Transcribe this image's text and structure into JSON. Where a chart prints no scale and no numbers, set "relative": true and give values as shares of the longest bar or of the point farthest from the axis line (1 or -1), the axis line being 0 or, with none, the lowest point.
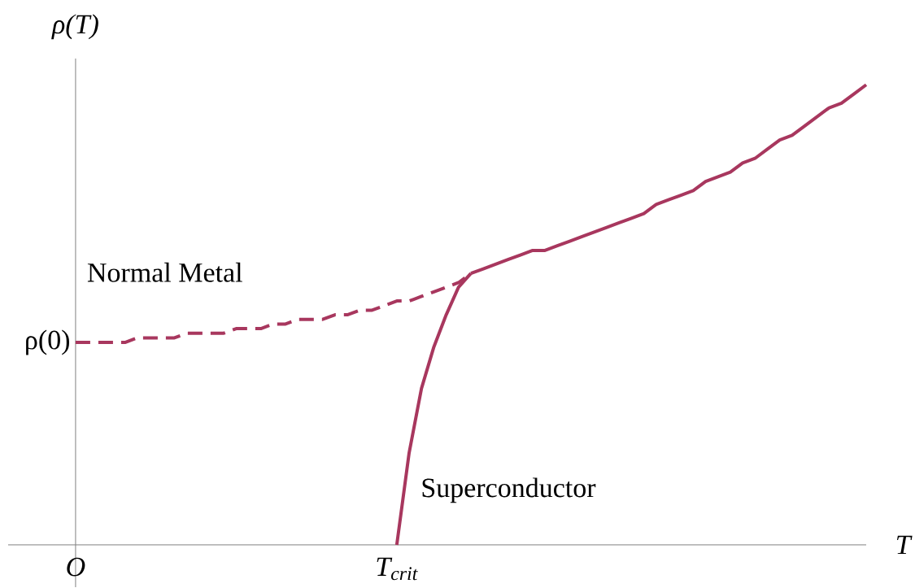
{
  "chart_data": {
    "type": "line",
    "relative": true,
    "xlabel": "T",
    "ylabel": "ρ(T)",
    "categories": [
      "O",
      null,
      null,
      null,
      null,
      null,
      null,
      null,
      null,
      null,
      null,
      null,
      null,
      null,
      null,
      null,
      null,
      null,
      null,
      null,
      null,
      null,
      null,
      null,
      null,
      null,
      "T$_{crit}$",
      null,
      null,
      null,
      null,
      null,
      null,
      null,
      null,
      null,
      null,
      null,
      null,
      null,
      null,
      null,
      null,
      null,
      null,
      null,
      null,
      null,
      null,
      null,
      null,
      null,
      null,
      null,
      null,
      null,
      null,
      null,
      null,
      null,
      null,
      null,
      null,
      null,
      null
    ],
    "series": [
      {
        "color": "#a8375e",
        "line_style": "dashed",
        "values": [
          0.44,
          0.44,
          0.44,
          0.44,
          0.44,
          0.45,
          0.45,
          0.45,
          0.45,
          0.46,
          0.46,
          0.46,
          0.46,
          0.47,
          0.47,
          0.47,
          0.48,
          0.48,
          0.49,
          0.49,
          0.49,
          0.5,
          0.5,
          0.51,
          0.51,
          0.52,
          0.53,
          0.53,
          0.54,
          0.55,
          0.56,
          0.57,
          0.59,
          null,
          null,
          null,
          null,
          null,
          null,
          null,
          null,
          null,
          null,
          null,
          null,
          null,
          null,
          null,
          null,
          null,
          null,
          null,
          null,
          null,
          null,
          null,
          null,
          null,
          null,
          null,
          null,
          null,
          null,
          null,
          null
        ]
      },
      {
        "color": "#a8375e",
        "line_style": "solid",
        "values": [
          null,
          null,
          null,
          null,
          null,
          null,
          null,
          null,
          null,
          null,
          null,
          null,
          null,
          null,
          null,
          null,
          null,
          null,
          null,
          null,
          null,
          null,
          null,
          null,
          null,
          null,
          null,
          null,
          null,
          null,
          null,
          null,
          0.59,
          0.6,
          0.61,
          0.62,
          0.63,
          0.64,
          0.64,
          0.65,
          0.66,
          0.67,
          0.68,
          0.69,
          0.7,
          0.71,
          0.72,
          0.74,
          0.75,
          0.76,
          0.77,
          0.79,
          0.8,
          0.81,
          0.83,
          0.84,
          0.86,
          0.88,
          0.89,
          0.91,
          0.93,
          0.95,
          0.96,
          0.98,
          1.0
        ]
      },
      {
        "color": "#a8375e",
        "line_style": "solid",
        "values": [
          null,
          null,
          null,
          null,
          null,
          null,
          null,
          null,
          null,
          null,
          null,
          null,
          null,
          null,
          null,
          null,
          null,
          null,
          null,
          null,
          null,
          null,
          null,
          null,
          null,
          null,
          0,
          0.2,
          0.34,
          0.43,
          0.5,
          0.56,
          0.59,
          null,
          null,
          null,
          null,
          null,
          null,
          null,
          null,
          null,
          null,
          null,
          null,
          null,
          null,
          null,
          null,
          null,
          null,
          null,
          null,
          null,
          null,
          null,
          null,
          null,
          null,
          null,
          null,
          null,
          null,
          null,
          null
        ]
      }
    ],
    "annotations": [
      "Normal Metal",
      "Superconductor",
      "ρ(0)"
    ]
  }
}
